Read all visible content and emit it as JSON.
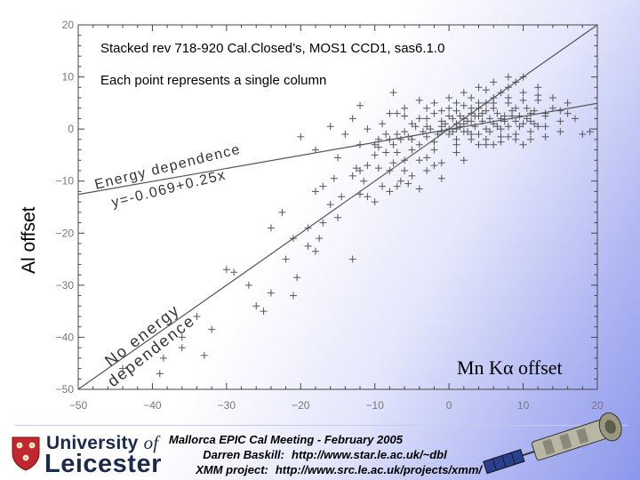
{
  "slide": {
    "footer": {
      "line1": "Mallorca EPIC Cal Meeting - February 2005",
      "line2_label": "Darren Baskill:",
      "line2_value": "http://www.star.le.ac.uk/~dbl",
      "line3_label": "XMM project:",
      "line3_value": "http://www.src.le.ac.uk/projects/xmm/"
    },
    "logo": {
      "line1_prefix": "University",
      "line1_suffix": "of",
      "line2": "Leicester"
    }
  },
  "chart_data": {
    "type": "scatter",
    "title": "Stacked rev 718-920 Cal.Closed’s, MOS1 CCD1, sas6.1.0",
    "subtitle": "Each point represents a single column",
    "xlabel": "Mn Kα offset",
    "ylabel": "Al offset",
    "xlim": [
      -50,
      20
    ],
    "ylim": [
      -50,
      20
    ],
    "xticks": [
      -50,
      -40,
      -30,
      -20,
      -10,
      0,
      10,
      20
    ],
    "yticks": [
      -50,
      -40,
      -30,
      -20,
      -10,
      0,
      10,
      20
    ],
    "xtick_labels": [
      "−50",
      "−40",
      "−30",
      "−20",
      "−10",
      "0",
      "10",
      "20"
    ],
    "ytick_labels": [
      "−50",
      "−40",
      "−30",
      "−20",
      "−10",
      "0",
      "10",
      "20"
    ],
    "grid": false,
    "marker": "+",
    "lines": [
      {
        "name": "No energy dependence",
        "slope": 1,
        "intercept": 0
      },
      {
        "name": "Energy dependence",
        "slope": 0.25,
        "intercept": -0.069
      }
    ],
    "annotations": {
      "energy_dependence": [
        "Energy dependence",
        "y=-0.069+0.25x"
      ],
      "no_energy_dependence": [
        "No energy",
        "dependence"
      ]
    },
    "points": [
      [
        -38.5,
        -44
      ],
      [
        -33,
        -43.5
      ],
      [
        -44,
        -46
      ],
      [
        -36,
        -42
      ],
      [
        -32,
        -38.5
      ],
      [
        -25,
        -35
      ],
      [
        -29,
        -27.5
      ],
      [
        -21,
        -32
      ],
      [
        -24,
        -31.5
      ],
      [
        -20.5,
        -28.5
      ],
      [
        -18,
        -23.5
      ],
      [
        -17.5,
        -21
      ],
      [
        -13,
        -25
      ],
      [
        -19,
        -19
      ],
      [
        -21,
        -21
      ],
      [
        -14.5,
        -13
      ],
      [
        -12,
        -12.5
      ],
      [
        -16,
        -14.5
      ],
      [
        -18,
        -12
      ],
      [
        -15.5,
        -9.5
      ],
      [
        -13,
        -9
      ],
      [
        -11.5,
        -10
      ],
      [
        -12.5,
        -7.5
      ],
      [
        -9.5,
        -7.5
      ],
      [
        -11,
        -7
      ],
      [
        -8,
        -8
      ],
      [
        -7,
        -11
      ],
      [
        -6.5,
        -10
      ],
      [
        -5.5,
        -10.5
      ],
      [
        -7.5,
        -6.5
      ],
      [
        -8.5,
        -4.5
      ],
      [
        -9.5,
        -3.5
      ],
      [
        -6,
        -6
      ],
      [
        -5,
        -4
      ],
      [
        -3,
        -8
      ],
      [
        -2,
        -7
      ],
      [
        -1,
        -9.5
      ],
      [
        -4,
        -11.5
      ],
      [
        -20,
        -1.5
      ],
      [
        -12,
        -8
      ],
      [
        -22.5,
        -16
      ],
      [
        -19,
        -22.5
      ],
      [
        -10,
        -3
      ],
      [
        -8,
        -2
      ],
      [
        -7,
        -1
      ],
      [
        -6,
        -0.5
      ],
      [
        -5,
        1
      ],
      [
        -4,
        2
      ],
      [
        -3,
        0.5
      ],
      [
        -2,
        3
      ],
      [
        -1,
        1.5
      ],
      [
        0,
        2.5
      ],
      [
        1,
        3.5
      ],
      [
        2,
        1
      ],
      [
        3,
        4
      ],
      [
        4,
        2.5
      ],
      [
        5,
        3.5
      ],
      [
        6,
        5
      ],
      [
        7,
        2
      ],
      [
        8,
        6
      ],
      [
        9,
        4
      ],
      [
        10,
        7
      ],
      [
        11,
        3
      ],
      [
        12,
        5.5
      ],
      [
        13,
        2.5
      ],
      [
        14,
        4
      ],
      [
        15,
        1.5
      ],
      [
        16,
        3
      ],
      [
        18,
        -1
      ],
      [
        -5,
        -2
      ],
      [
        -4,
        -3
      ],
      [
        -3,
        -1.5
      ],
      [
        -2,
        -2.5
      ],
      [
        -1,
        0.5
      ],
      [
        0,
        -1
      ],
      [
        1,
        -2
      ],
      [
        2,
        -0.5
      ],
      [
        3,
        1.5
      ],
      [
        4,
        -1
      ],
      [
        5,
        0
      ],
      [
        6,
        1
      ],
      [
        7,
        -1.5
      ],
      [
        8,
        0.5
      ],
      [
        9,
        -1
      ],
      [
        10,
        1
      ],
      [
        11,
        -0.5
      ],
      [
        12,
        0.5
      ],
      [
        13,
        -1.5
      ],
      [
        0,
        0
      ],
      [
        1,
        1
      ],
      [
        2,
        2
      ],
      [
        3,
        3
      ],
      [
        4,
        4
      ],
      [
        5,
        5
      ],
      [
        6,
        6
      ],
      [
        7,
        7
      ],
      [
        8,
        8
      ],
      [
        9,
        9
      ],
      [
        10,
        10
      ],
      [
        -1,
        -0.5
      ],
      [
        0.5,
        -0.5
      ],
      [
        1.5,
        0.5
      ],
      [
        2.5,
        -0.5
      ],
      [
        3.5,
        0.5
      ],
      [
        4.5,
        1.5
      ],
      [
        5.5,
        -0.5
      ],
      [
        6.5,
        0.5
      ],
      [
        7.5,
        1.5
      ],
      [
        8.5,
        2.5
      ],
      [
        9.5,
        0.5
      ],
      [
        10.5,
        2
      ],
      [
        11.5,
        1
      ],
      [
        -6,
        4
      ],
      [
        -4,
        5.5
      ],
      [
        -2,
        5
      ],
      [
        0,
        6
      ],
      [
        2,
        7
      ],
      [
        4,
        8
      ],
      [
        6,
        9
      ],
      [
        8,
        10
      ],
      [
        -10,
        -5
      ],
      [
        -12,
        -3
      ],
      [
        -14,
        -1
      ],
      [
        -16,
        0.5
      ],
      [
        -9,
        1
      ],
      [
        -7,
        3
      ],
      [
        -11,
        0
      ],
      [
        -13,
        2
      ],
      [
        -18,
        -4
      ],
      [
        -24,
        -19
      ],
      [
        -30,
        -27
      ],
      [
        -26,
        -34
      ],
      [
        -39,
        -47
      ],
      [
        -36,
        -40
      ],
      [
        -34,
        -36
      ],
      [
        -27,
        -30
      ],
      [
        -22,
        -25
      ],
      [
        -17,
        -18
      ],
      [
        -15,
        -17
      ],
      [
        -10,
        -14
      ],
      [
        -8,
        -12
      ],
      [
        -6,
        -8
      ],
      [
        -4,
        -6
      ],
      [
        -2,
        -4
      ],
      [
        1,
        -3
      ],
      [
        3,
        -2
      ],
      [
        5,
        -3
      ],
      [
        7,
        -2.5
      ],
      [
        9,
        -2
      ],
      [
        11,
        -2
      ],
      [
        13,
        0.5
      ],
      [
        15,
        -0.5
      ],
      [
        3,
        6
      ],
      [
        5,
        7.5
      ],
      [
        1,
        5
      ],
      [
        -1,
        3.5
      ],
      [
        -3,
        4
      ],
      [
        14,
        6
      ],
      [
        12,
        8
      ],
      [
        16,
        5
      ],
      [
        17,
        2
      ],
      [
        19,
        -0.5
      ],
      [
        0.5,
        2
      ],
      [
        1.5,
        2.5
      ],
      [
        2.5,
        1.5
      ],
      [
        3.5,
        2.5
      ],
      [
        4.5,
        3
      ],
      [
        5.5,
        2
      ],
      [
        6.5,
        3
      ],
      [
        7.5,
        2.5
      ],
      [
        8.5,
        3.5
      ],
      [
        9.5,
        2.5
      ],
      [
        10.5,
        4
      ],
      [
        11.5,
        3.5
      ],
      [
        -0.5,
        1
      ],
      [
        -1.5,
        -1
      ],
      [
        -2.5,
        0
      ],
      [
        -3.5,
        -0.5
      ],
      [
        -4.5,
        0.5
      ],
      [
        -5.5,
        -1.5
      ],
      [
        -6.5,
        -2
      ],
      [
        -7.5,
        -3
      ],
      [
        -8.5,
        -1
      ],
      [
        -9.5,
        -2
      ],
      [
        0,
        4
      ],
      [
        2,
        4.5
      ],
      [
        4,
        5
      ],
      [
        6,
        4
      ],
      [
        8,
        5
      ],
      [
        10,
        5.5
      ],
      [
        12,
        6.5
      ],
      [
        -7.5,
        7
      ],
      [
        -8,
        3
      ],
      [
        -12,
        4.5
      ],
      [
        -6,
        2.5
      ],
      [
        -3,
        2
      ],
      [
        1,
        0
      ],
      [
        3,
        -1
      ],
      [
        5,
        -2
      ],
      [
        7,
        0
      ],
      [
        9,
        1.5
      ],
      [
        11,
        1.5
      ],
      [
        13,
        3
      ],
      [
        15,
        3.5
      ],
      [
        -15,
        -5.5
      ],
      [
        -9,
        -11
      ],
      [
        -11,
        -13
      ],
      [
        -17,
        -11
      ],
      [
        -5,
        -9
      ],
      [
        -7,
        -4.5
      ],
      [
        -3,
        -5.5
      ],
      [
        -1,
        -6.5
      ],
      [
        1,
        -4.5
      ],
      [
        2,
        -6
      ],
      [
        4,
        -3
      ],
      [
        6,
        -3
      ],
      [
        8,
        -1.5
      ],
      [
        10,
        -3
      ]
    ]
  }
}
